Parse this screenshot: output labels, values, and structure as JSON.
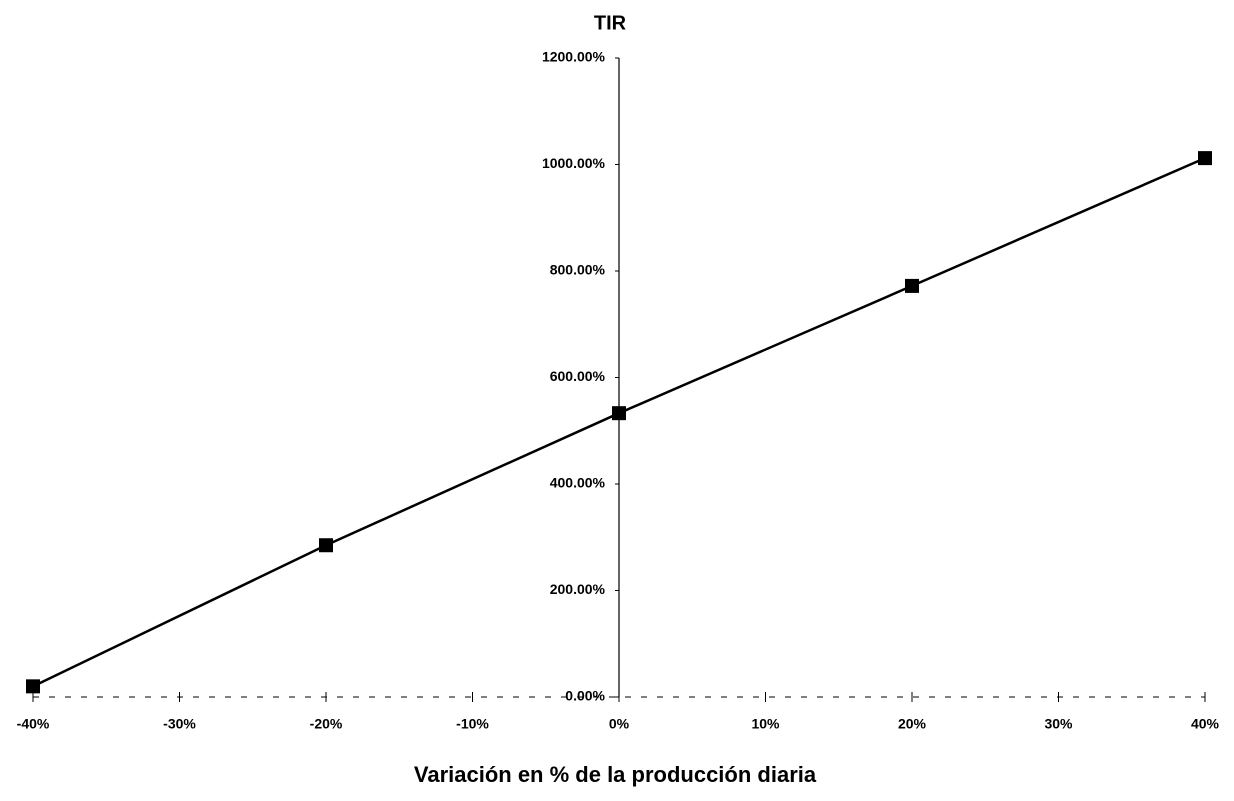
{
  "chart_data": {
    "type": "line",
    "title": "TIR",
    "x_label": "Variación en % de la producción diaria",
    "x": [
      -40,
      -20,
      0,
      20,
      40
    ],
    "series": [
      {
        "name": "TIR",
        "color": "#000000",
        "values": [
          20,
          285,
          533,
          772,
          1012
        ]
      }
    ],
    "xlim": [
      -40,
      40
    ],
    "xticks": [
      {
        "value": -40,
        "label": "-40%"
      },
      {
        "value": -30,
        "label": "-30%"
      },
      {
        "value": -20,
        "label": "-20%"
      },
      {
        "value": -10,
        "label": "-10%"
      },
      {
        "value": 0,
        "label": "0%"
      },
      {
        "value": 10,
        "label": "10%"
      },
      {
        "value": 20,
        "label": "20%"
      },
      {
        "value": 30,
        "label": "30%"
      },
      {
        "value": 40,
        "label": "40%"
      }
    ],
    "ylim": [
      0,
      1200
    ],
    "yticks": [
      {
        "value": 0,
        "label": "0.00%"
      },
      {
        "value": 200,
        "label": "200.00%"
      },
      {
        "value": 400,
        "label": "400.00%"
      },
      {
        "value": 600,
        "label": "600.00%"
      },
      {
        "value": 800,
        "label": "800.00%"
      },
      {
        "value": 1000,
        "label": "1000.00%"
      },
      {
        "value": 1200,
        "label": "1200.00%"
      }
    ],
    "grid": false
  }
}
